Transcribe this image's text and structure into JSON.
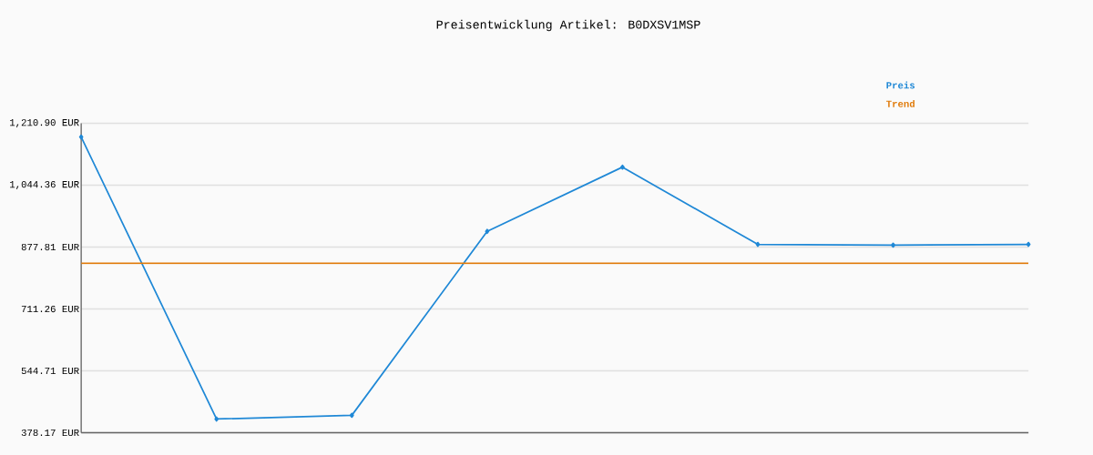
{
  "chart_data": {
    "type": "line",
    "title": "Preisentwicklung Artikel: B0DXSV1MSP",
    "categories": [
      null,
      null,
      null,
      null,
      null,
      null,
      null,
      null
    ],
    "series": [
      {
        "name": "Preis",
        "color": "#1f88d6",
        "marker": "diamond",
        "values": [
          1174,
          415,
          425,
          920,
          1093,
          885,
          883,
          885
        ]
      },
      {
        "name": "Trend",
        "color": "#e07b0a",
        "marker": "none",
        "values": [
          834,
          834,
          834,
          834,
          834,
          834,
          834,
          834
        ]
      }
    ],
    "ylim": [
      378.17,
      1210.9
    ],
    "yticks": [
      {
        "value": 378.17,
        "label": "378.17 EUR"
      },
      {
        "value": 544.71,
        "label": "544.71 EUR"
      },
      {
        "value": 711.26,
        "label": "711.26 EUR"
      },
      {
        "value": 877.81,
        "label": "877.81 EUR"
      },
      {
        "value": 1044.36,
        "label": "1,044.36 EUR"
      },
      {
        "value": 1210.9,
        "label": "1,210.90 EUR"
      }
    ],
    "grid": "y",
    "legend": "top right",
    "line_style": "solid"
  }
}
